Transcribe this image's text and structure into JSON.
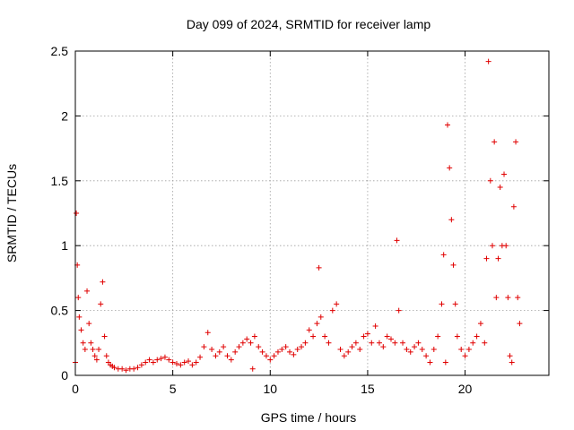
{
  "chart_data": {
    "type": "scatter",
    "title": "Day 099 of 2024, SRMTID for receiver lamp",
    "xlabel": "GPS time / hours",
    "ylabel": "SRMTID / TECUs",
    "xlim": [
      0,
      24.3
    ],
    "ylim": [
      0,
      2.5
    ],
    "xticks": [
      0,
      5,
      10,
      15,
      20
    ],
    "xtick_labels": [
      "0",
      "5",
      "10",
      "15",
      "20"
    ],
    "yticks": [
      0,
      0.5,
      1,
      1.5,
      2,
      2.5
    ],
    "ytick_labels": [
      "0",
      "0.5",
      "1",
      "1.5",
      "2",
      "2.5"
    ],
    "grid": true,
    "marker": "+",
    "series": [
      {
        "name": "SRMTID",
        "color": "#e00000",
        "x": [
          0.0,
          0.05,
          0.1,
          0.15,
          0.2,
          0.3,
          0.4,
          0.5,
          0.6,
          0.7,
          0.8,
          0.9,
          1.0,
          1.1,
          1.2,
          1.3,
          1.4,
          1.5,
          1.6,
          1.7,
          1.8,
          1.9,
          2.0,
          2.2,
          2.4,
          2.6,
          2.8,
          3.0,
          3.2,
          3.4,
          3.6,
          3.8,
          4.0,
          4.2,
          4.4,
          4.6,
          4.8,
          5.0,
          5.2,
          5.4,
          5.6,
          5.8,
          6.0,
          6.2,
          6.4,
          6.6,
          6.8,
          7.0,
          7.2,
          7.4,
          7.6,
          7.8,
          8.0,
          8.2,
          8.4,
          8.6,
          8.8,
          9.0,
          9.1,
          9.2,
          9.4,
          9.6,
          9.8,
          10.0,
          10.2,
          10.4,
          10.6,
          10.8,
          11.0,
          11.2,
          11.4,
          11.6,
          11.8,
          12.0,
          12.2,
          12.4,
          12.5,
          12.6,
          12.8,
          13.0,
          13.2,
          13.4,
          13.6,
          13.8,
          14.0,
          14.2,
          14.4,
          14.6,
          14.8,
          15.0,
          15.2,
          15.4,
          15.6,
          15.8,
          16.0,
          16.2,
          16.4,
          16.5,
          16.6,
          16.8,
          17.0,
          17.2,
          17.4,
          17.6,
          17.8,
          18.0,
          18.2,
          18.4,
          18.6,
          18.8,
          18.9,
          19.0,
          19.1,
          19.2,
          19.3,
          19.4,
          19.5,
          19.6,
          19.8,
          20.0,
          20.2,
          20.4,
          20.6,
          20.8,
          21.0,
          21.1,
          21.2,
          21.3,
          21.4,
          21.5,
          21.6,
          21.7,
          21.8,
          21.9,
          22.0,
          22.1,
          22.2,
          22.3,
          22.4,
          22.5,
          22.6,
          22.7,
          22.8
        ],
        "y": [
          0.1,
          1.25,
          0.85,
          0.6,
          0.45,
          0.35,
          0.25,
          0.2,
          0.65,
          0.4,
          0.25,
          0.2,
          0.15,
          0.12,
          0.2,
          0.55,
          0.72,
          0.3,
          0.15,
          0.1,
          0.08,
          0.07,
          0.06,
          0.05,
          0.05,
          0.04,
          0.05,
          0.05,
          0.06,
          0.08,
          0.1,
          0.12,
          0.1,
          0.12,
          0.13,
          0.14,
          0.12,
          0.1,
          0.09,
          0.08,
          0.1,
          0.11,
          0.08,
          0.1,
          0.14,
          0.22,
          0.33,
          0.2,
          0.15,
          0.18,
          0.22,
          0.15,
          0.12,
          0.18,
          0.22,
          0.25,
          0.28,
          0.25,
          0.05,
          0.3,
          0.22,
          0.18,
          0.15,
          0.12,
          0.15,
          0.18,
          0.2,
          0.22,
          0.18,
          0.16,
          0.2,
          0.22,
          0.25,
          0.35,
          0.3,
          0.4,
          0.83,
          0.45,
          0.3,
          0.25,
          0.5,
          0.55,
          0.2,
          0.15,
          0.18,
          0.22,
          0.25,
          0.2,
          0.3,
          0.32,
          0.25,
          0.38,
          0.25,
          0.22,
          0.3,
          0.28,
          0.25,
          1.04,
          0.5,
          0.25,
          0.2,
          0.18,
          0.22,
          0.25,
          0.2,
          0.15,
          0.1,
          0.2,
          0.3,
          0.55,
          0.93,
          0.1,
          1.93,
          1.6,
          1.2,
          0.85,
          0.55,
          0.3,
          0.2,
          0.15,
          0.2,
          0.25,
          0.3,
          0.4,
          0.25,
          0.9,
          2.42,
          1.5,
          1.0,
          1.8,
          0.6,
          0.9,
          1.45,
          1.0,
          1.55,
          1.0,
          0.6,
          0.15,
          0.1,
          1.3,
          1.8,
          0.6,
          0.4
        ]
      }
    ]
  }
}
